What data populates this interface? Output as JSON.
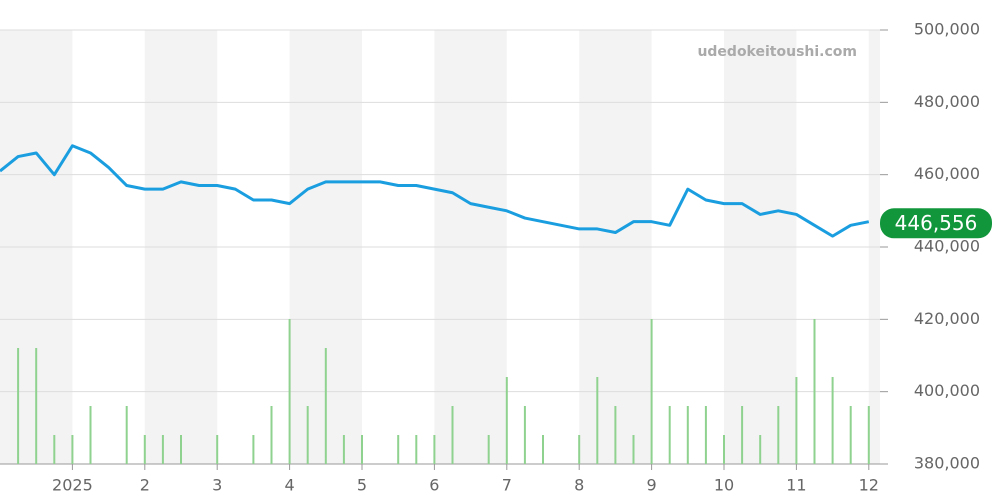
{
  "chart_data": {
    "type": "line",
    "watermark": "udedokeitoushi.com",
    "categories": [
      null,
      null,
      null,
      null,
      "2025",
      null,
      null,
      null,
      "2",
      null,
      null,
      null,
      "3",
      null,
      null,
      null,
      "4",
      null,
      null,
      null,
      "5",
      null,
      null,
      null,
      "6",
      null,
      null,
      null,
      "7",
      null,
      null,
      null,
      "8",
      null,
      null,
      null,
      "9",
      null,
      null,
      null,
      "10",
      null,
      null,
      null,
      "11",
      null,
      null,
      null,
      "12"
    ],
    "series": [
      {
        "color": "#1a9ee0",
        "values": [
          461000,
          465000,
          466000,
          460000,
          468000,
          466000,
          462000,
          457000,
          456000,
          456000,
          458000,
          457000,
          457000,
          456000,
          453000,
          453000,
          452000,
          456000,
          458000,
          458000,
          458000,
          458000,
          457000,
          457000,
          456000,
          455000,
          452000,
          451000,
          450000,
          448000,
          447000,
          446000,
          445000,
          445000,
          444000,
          447000,
          447000,
          446000,
          456000,
          453000,
          452000,
          452000,
          449000,
          450000,
          449000,
          446000,
          443000,
          446000,
          447000
        ]
      }
    ],
    "volume": {
      "color": "#8fd18f",
      "values": [
        0,
        4,
        4,
        1,
        1,
        2,
        0,
        2,
        1,
        1,
        1,
        0,
        1,
        0,
        1,
        2,
        5,
        2,
        4,
        1,
        1,
        0,
        1,
        1,
        1,
        2,
        0,
        1,
        3,
        2,
        1,
        0,
        1,
        3,
        2,
        1,
        5,
        2,
        2,
        2,
        1,
        2,
        1,
        2,
        3,
        5,
        3,
        2,
        2
      ]
    },
    "price_label": {
      "value": 446556,
      "label": "446,556"
    },
    "label_color": "#12963c",
    "ylim": [
      380000,
      500000
    ],
    "yticks": [
      {
        "value": 380000,
        "label": "380,000"
      },
      {
        "value": 400000,
        "label": "400,000"
      },
      {
        "value": 420000,
        "label": "420,000"
      },
      {
        "value": 440000,
        "label": "440,000"
      },
      {
        "value": 460000,
        "label": "460,000"
      },
      {
        "value": 480000,
        "label": "480,000"
      },
      {
        "value": 500000,
        "label": "500,000"
      }
    ],
    "grid": true
  }
}
